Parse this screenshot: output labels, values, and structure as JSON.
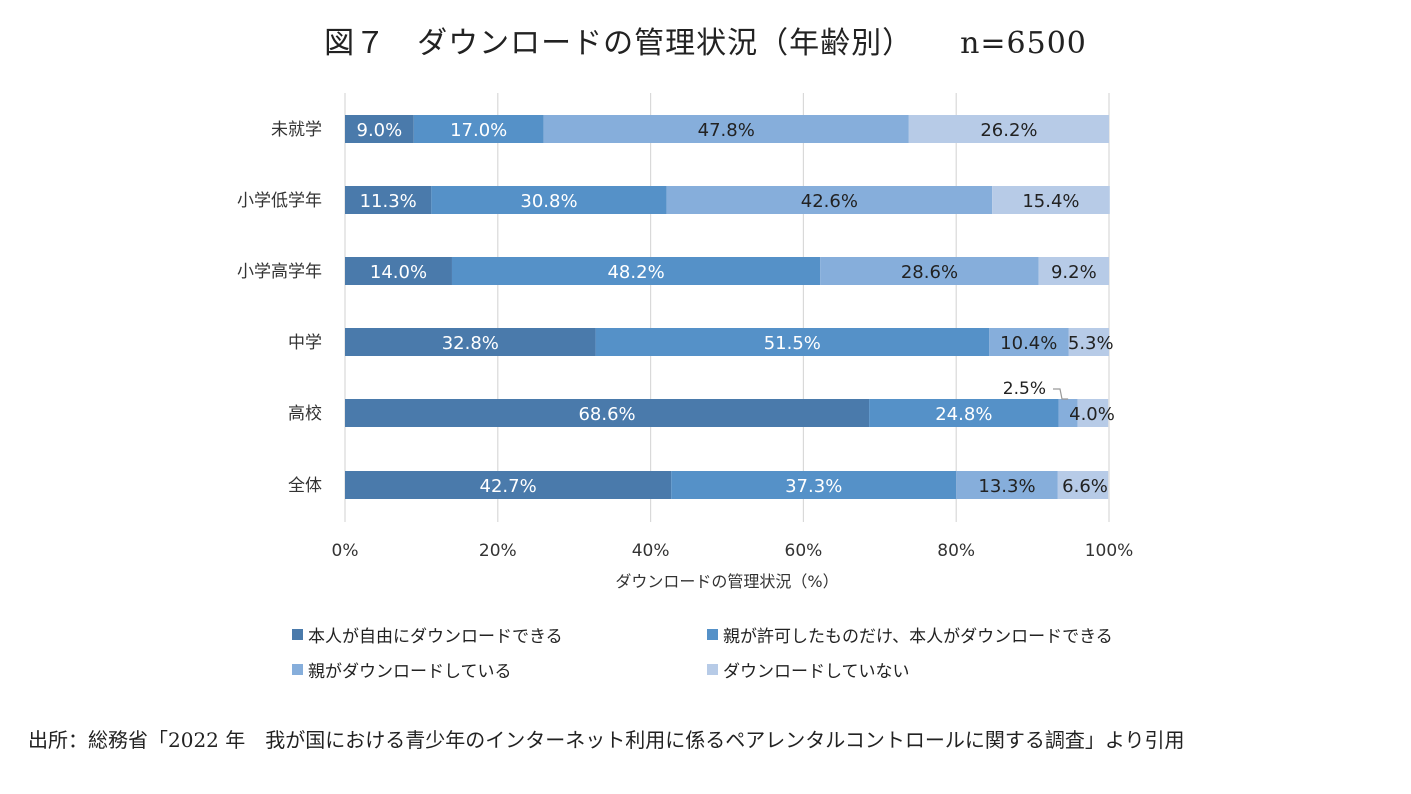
{
  "title": "図７　ダウンロードの管理状況（年齢別）　　n=6500",
  "chart_data": {
    "type": "bar",
    "orientation": "horizontal",
    "stacked": true,
    "categories": [
      "未就学",
      "小学低学年",
      "小学高学年",
      "中学",
      "高校",
      "全体"
    ],
    "series": [
      {
        "name": "本人が自由にダウンロードできる",
        "color": "#4a7aab",
        "values": [
          9.0,
          11.3,
          14.0,
          32.8,
          68.6,
          42.7
        ]
      },
      {
        "name": "親が許可したものだけ、本人がダウンロードできる",
        "color": "#5591c8",
        "values": [
          17.0,
          30.8,
          48.2,
          51.5,
          24.8,
          37.3
        ]
      },
      {
        "name": "親がダウンロードしている",
        "color": "#86aedb",
        "values": [
          47.8,
          42.6,
          28.6,
          10.4,
          2.5,
          13.3
        ]
      },
      {
        "name": "ダウンロードしていない",
        "color": "#b7cbe7",
        "values": [
          26.2,
          15.4,
          9.2,
          5.3,
          4.0,
          6.6
        ]
      }
    ],
    "xlabel": "ダウンロードの管理状況（%）",
    "xlim": [
      0,
      100
    ],
    "xticks": [
      "0%",
      "20%",
      "40%",
      "60%",
      "80%",
      "100%"
    ],
    "grid": true,
    "legend_position": "bottom"
  },
  "source": "出所：総務省「2022 年　我が国における青少年のインターネット利用に係るペアレンタルコントロールに関する調査」より引用"
}
